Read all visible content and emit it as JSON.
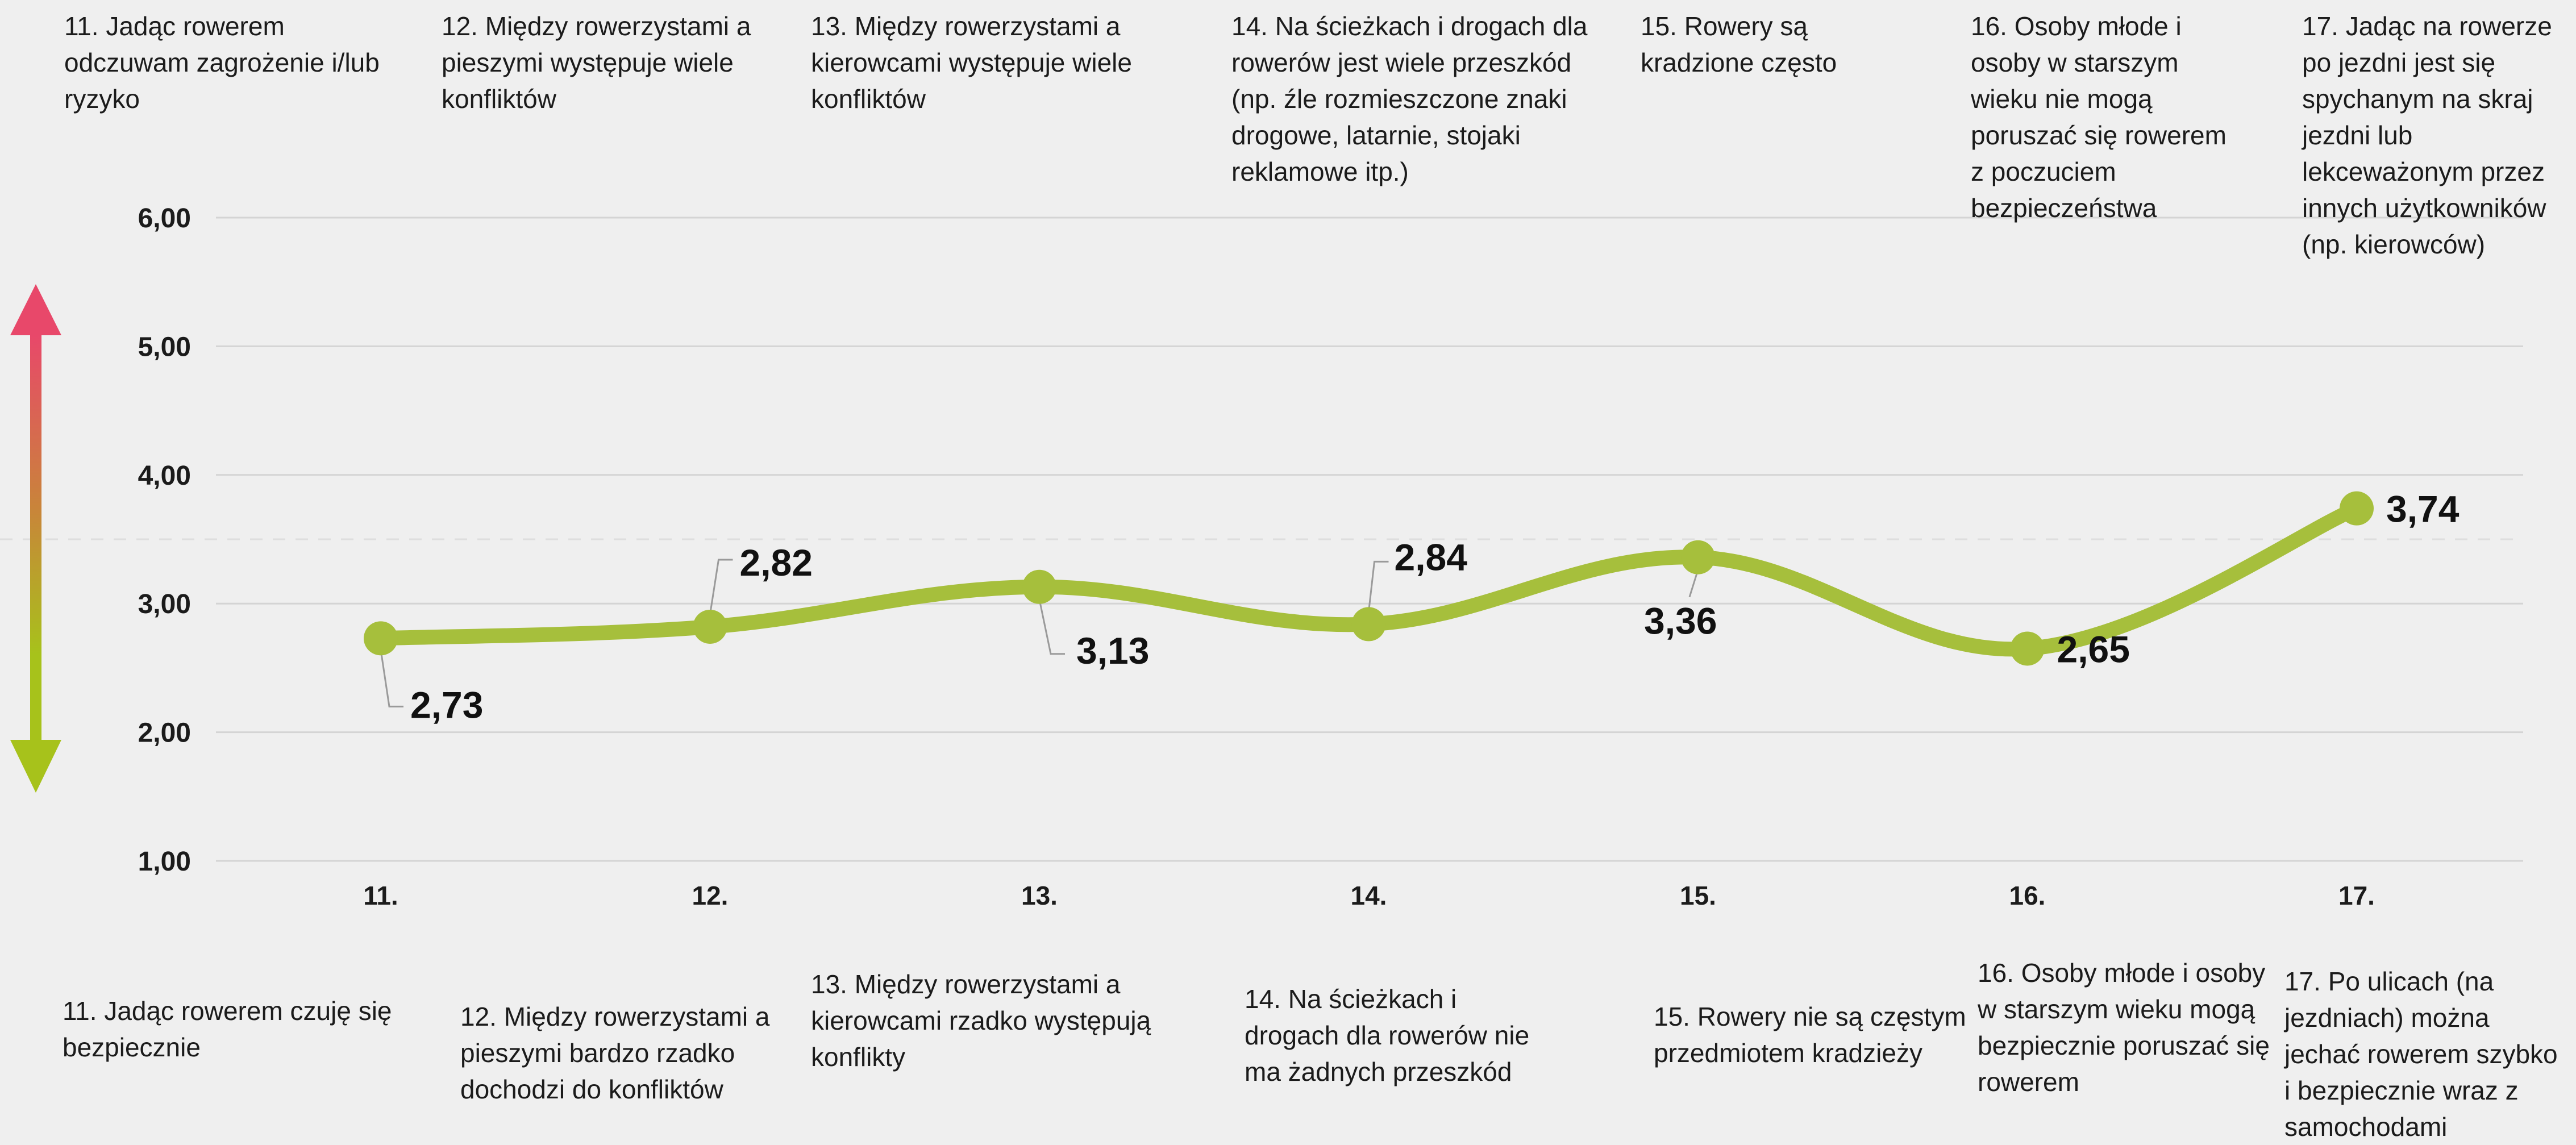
{
  "chart_data": {
    "type": "line",
    "categories": [
      "11.",
      "12.",
      "13.",
      "14.",
      "15.",
      "16.",
      "17."
    ],
    "values": [
      2.73,
      2.82,
      3.13,
      2.84,
      3.36,
      2.65,
      3.74
    ],
    "value_labels": [
      "2,73",
      "2,82",
      "3,13",
      "2,84",
      "3,36",
      "2,65",
      "3,74"
    ],
    "ylim": [
      1,
      6
    ],
    "yticks": [
      1,
      2,
      3,
      4,
      5,
      6
    ],
    "ytick_labels": [
      "1,00",
      "2,00",
      "3,00",
      "4,00",
      "5,00",
      "6,00"
    ],
    "midline": 3.5,
    "grid": true,
    "line_color": "#a6bf3c",
    "arrow_colors": {
      "top": "#e8486a",
      "middle": "#c9843a",
      "bottom": "#a7c21b"
    },
    "statements_top": [
      "11. Jadąc rowerem odczuwam zagrożenie i/lub ryzyko",
      "12. Między rowerzystami a pieszymi występuje wiele konfliktów",
      "13. Między rowerzystami a kierowcami występuje wiele konfliktów",
      "14. Na ścieżkach i drogach dla rowerów jest wiele przeszkód (np. źle rozmieszczone znaki drogowe, latarnie, stojaki reklamowe itp.)",
      "15. Rowery są kradzione często",
      "16. Osoby młode i osoby w starszym wieku nie mogą poruszać się rowerem z poczuciem bezpieczeństwa",
      "17. Jadąc na rowerze po jezdni jest się spychanym na skraj jezdni lub lekceważonym przez innych użytkowników (np. kierowców)"
    ],
    "statements_bottom": [
      "11. Jadąc rowerem czuję się bezpiecznie",
      "12. Między rowerzystami a pieszymi bardzo rzadko dochodzi do konfliktów",
      "13. Między rowerzystami a kierowcami rzadko występują konflikty",
      "14. Na ścieżkach i drogach dla rowerów nie ma żadnych przeszkód",
      "15. Rowery nie są częstym przedmiotem kradzieży",
      "16. Osoby młode i osoby w starszym wieku mogą bezpiecznie poruszać się rowerem",
      "17. Po ulicach (na jezdniach) można jechać rowerem szybko i bezpiecznie wraz z samochodami"
    ]
  }
}
